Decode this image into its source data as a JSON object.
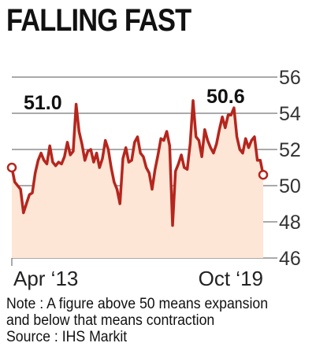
{
  "title": "FALLING FAST",
  "chart_data": {
    "type": "line",
    "ylim": [
      46,
      56
    ],
    "yticks": [
      "56",
      "54",
      "52",
      "50",
      "48",
      "46"
    ],
    "x_labels": [
      "Apr ‘13",
      "Oct ‘19"
    ],
    "annotations": [
      {
        "label": "51.0",
        "x": 0,
        "y": 51.0
      },
      {
        "label": "50.6",
        "x": 78,
        "y": 50.6
      }
    ],
    "colors": {
      "line": "#b5261e",
      "fill": "#fde6d6",
      "grid": "#555555"
    },
    "values": [
      51.0,
      50.2,
      50.0,
      49.8,
      48.5,
      49.0,
      49.5,
      49.6,
      50.7,
      51.4,
      51.8,
      51.4,
      51.2,
      52.2,
      51.3,
      51.1,
      51.3,
      51.2,
      51.6,
      52.4,
      51.7,
      51.9,
      54.5,
      53.0,
      52.3,
      51.4,
      51.9,
      52.0,
      51.3,
      51.8,
      51.0,
      51.5,
      52.5,
      52.0,
      51.0,
      50.2,
      49.8,
      49.0,
      51.5,
      52.1,
      51.3,
      51.4,
      52.4,
      52.7,
      51.8,
      51.6,
      51.0,
      50.7,
      49.8,
      50.9,
      51.7,
      52.6,
      52.5,
      53.0,
      52.2,
      47.8,
      50.8,
      51.2,
      51.7,
      51.0,
      50.9,
      52.3,
      54.7,
      52.7,
      52.5,
      51.6,
      53.1,
      52.5,
      52.1,
      51.8,
      52.3,
      53.1,
      53.8,
      53.2,
      53.9,
      53.9,
      54.3,
      52.7,
      52.0,
      51.8,
      52.6,
      52.1,
      52.5,
      52.7,
      51.4,
      51.4,
      50.6
    ]
  },
  "footer": {
    "note_line1": "Note : A figure above 50 means expansion",
    "note_line2": "and below that means contraction",
    "source": "Source : IHS Markit"
  }
}
